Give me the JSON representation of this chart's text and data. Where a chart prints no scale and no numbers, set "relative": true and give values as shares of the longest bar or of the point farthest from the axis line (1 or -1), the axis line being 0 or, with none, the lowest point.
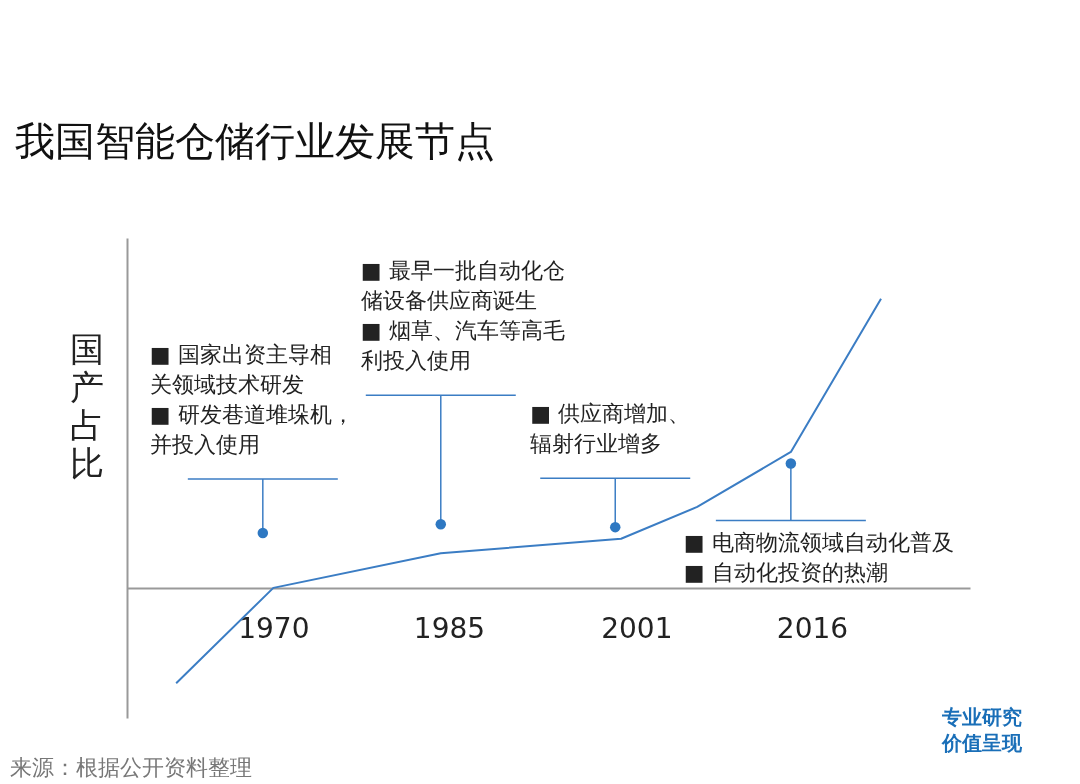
{
  "chart_data": {
    "type": "line",
    "title": "我国智能仓储行业发展节点",
    "ylabel": "国产占比",
    "relative": true,
    "tick_labels": "x",
    "x": [
      1961.7,
      1970,
      1984.3,
      1999.7,
      2006.2,
      2014.2,
      2021.9
    ],
    "xlim": [
      1957.5,
      2029.5
    ],
    "xticks": [
      1970,
      1985,
      2001,
      2016
    ],
    "series": [
      {
        "color": "#3b7dc4",
        "values": [
          -0.33,
          0,
          0.12,
          0.17,
          0.28,
          0.47,
          1
        ]
      }
    ],
    "marker": "none",
    "line_style": "solid",
    "annotations": [
      {
        "text": "■ 国家出资主导相关领域技术研发\n■ 研发巷道堆垛机，并投入使用",
        "x": 1969.1,
        "y": 0.19
      },
      {
        "text": "■ 最早一批自动化仓储设备供应商诞生\n■ 烟草、汽车等高毛利投入使用",
        "x": 1984.3,
        "y": 0.22
      },
      {
        "text": "■ 供应商增加、辐射行业增多",
        "x": 1999.2,
        "y": 0.21
      },
      {
        "text": "■ 电商物流领域自动化普及\n■ 自动化投资的热潮",
        "x": 2014.2,
        "y": 0.43
      },
      "来源：根据公开资料整理",
      "专业研究价值呈现"
    ]
  }
}
